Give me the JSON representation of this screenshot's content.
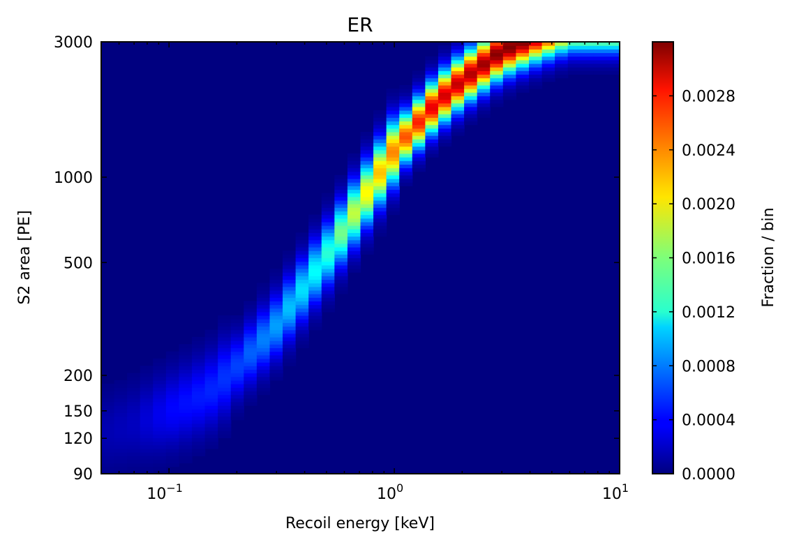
{
  "chart_data": {
    "type": "heatmap",
    "title": "ER",
    "xlabel": "Recoil energy [keV]",
    "ylabel": "S2 area [PE]",
    "x_scale": "log",
    "y_scale": "log",
    "xlim": [
      0.05,
      10
    ],
    "ylim": [
      90,
      3000
    ],
    "x_ticks": [
      {
        "value": 0.1,
        "base": "10",
        "exp": "−1"
      },
      {
        "value": 1,
        "base": "10",
        "exp": "0"
      },
      {
        "value": 10,
        "base": "10",
        "exp": "1"
      }
    ],
    "y_ticks": [
      {
        "value": 90,
        "label": "90"
      },
      {
        "value": 120,
        "label": "120"
      },
      {
        "value": 150,
        "label": "150"
      },
      {
        "value": 200,
        "label": "200"
      },
      {
        "value": 500,
        "label": "500"
      },
      {
        "value": 1000,
        "label": "1000"
      },
      {
        "value": 3000,
        "label": "3000"
      }
    ],
    "colormap": "jet",
    "colorbar": {
      "label": "Fraction / bin",
      "range": [
        0,
        0.0032
      ],
      "ticks": [
        {
          "value": 0.0,
          "label": "0.0000"
        },
        {
          "value": 0.0004,
          "label": "0.0004"
        },
        {
          "value": 0.0008,
          "label": "0.0008"
        },
        {
          "value": 0.0012,
          "label": "0.0012"
        },
        {
          "value": 0.0016,
          "label": "0.0016"
        },
        {
          "value": 0.002,
          "label": "0.0020"
        },
        {
          "value": 0.0024,
          "label": "0.0024"
        },
        {
          "value": 0.0028,
          "label": "0.0028"
        }
      ]
    },
    "ridge": {
      "energy_keV": [
        0.05,
        0.07,
        0.1,
        0.15,
        0.2,
        0.3,
        0.5,
        0.7,
        1.0,
        1.5,
        2.0,
        3.0,
        4.0,
        6.0
      ],
      "s2_peak_PE": [
        125,
        135,
        150,
        175,
        215,
        300,
        530,
        800,
        1250,
        1800,
        2200,
        2800,
        3100,
        3500
      ],
      "fraction_peak": [
        0.00015,
        0.0002,
        0.0004,
        0.0005,
        0.0006,
        0.0009,
        0.0013,
        0.0019,
        0.0024,
        0.0029,
        0.003,
        0.0032,
        0.0032,
        0.003
      ]
    }
  }
}
